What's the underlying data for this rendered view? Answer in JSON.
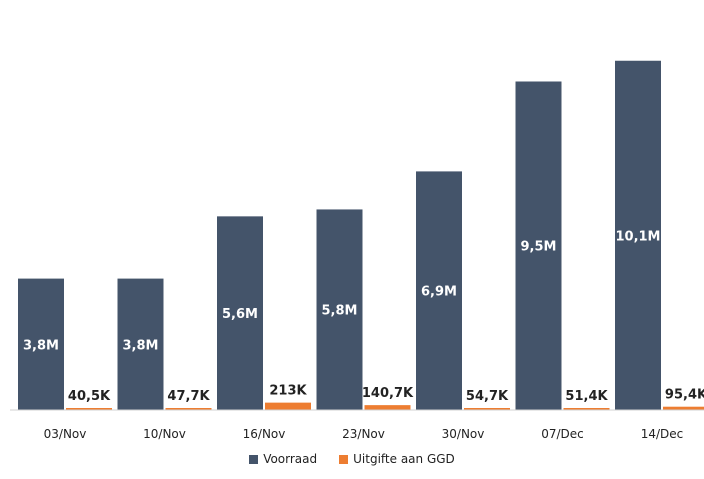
{
  "chart_data": {
    "type": "bar",
    "categories": [
      "03/Nov",
      "10/Nov",
      "16/Nov",
      "23/Nov",
      "30/Nov",
      "07/Dec",
      "14/Dec"
    ],
    "series": [
      {
        "name": "Voorraad",
        "values": [
          3.8,
          3.8,
          5.6,
          5.8,
          6.9,
          9.5,
          10.1
        ],
        "labels": [
          "3,8M",
          "3,8M",
          "5,6M",
          "5,8M",
          "6,9M",
          "9,5M",
          "10,1M"
        ],
        "color": "#44546a"
      },
      {
        "name": "Uitgifte aan GGD",
        "values": [
          0.0405,
          0.0477,
          0.213,
          0.1407,
          0.0547,
          0.0514,
          0.0954
        ],
        "labels": [
          "40,5K",
          "47,7K",
          "213K",
          "140,7K",
          "54,7K",
          "51,4K",
          "95,4K"
        ],
        "color": "#ed7d31"
      }
    ],
    "unit": "M",
    "ylim": [
      0,
      10.7
    ],
    "grid": false,
    "legend_position": "bottom"
  }
}
